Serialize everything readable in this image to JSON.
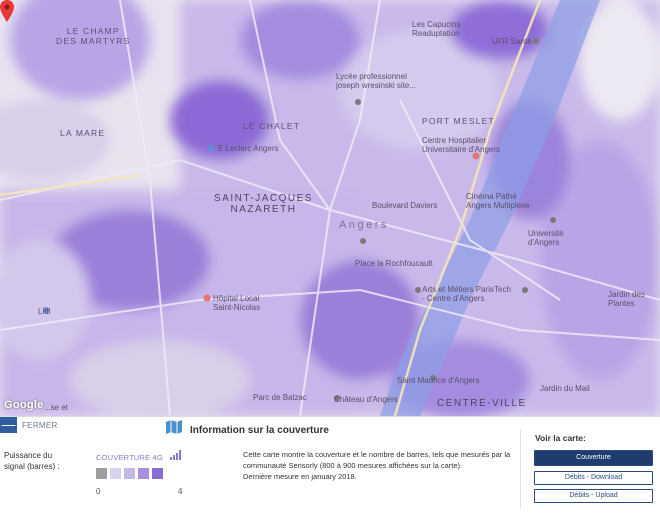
{
  "map": {
    "districts": {
      "champ_des_martyrs": "LE CHAMP\nDES MARTYRS",
      "la_mare": "LA MARE",
      "le_chalet": "LE CHALET",
      "saint_jacques": "SAINT-JACQUES\nNAZARETH",
      "port_meslet": "PORT MESLET",
      "centre_ville": "CENTRE-VILLE"
    },
    "city": "Angers",
    "pois": {
      "capucins": "Les Capucins\nReaduptation",
      "ufr_sante": "UFR Santé",
      "lycee": "Lycée professionnel\njoseph wresinski site...",
      "centre_hospitalier": "Centre Hospitalier\nUniversitaire d'Angers",
      "leclerc": "E.Leclerc Angers",
      "cinema": "Cinéma Pathé\nAngers Multiplexe",
      "universite": "Université\nd'Angers",
      "boulevard_daviers": "Boulevard Daviers",
      "place_rochefoucault": "Place la Rochfoucault",
      "arts_metiers": "Arts et Métiers ParisTech\n- Centre d'Angers",
      "hopital_local": "Hôpital Local\nSaint-Nicolas",
      "jardin_plantes": "Jardin des\nPlantes",
      "saint_maurice": "Saint Maurice d'Angers",
      "jardin_mail": "Jardin du Mail",
      "chateau": "Château d'Angers",
      "parc_balzac": "Parc de Balzac",
      "lidl": "Lidl",
      "eglise": "...se et"
    },
    "google_logo": "Google",
    "accent": "#7a5bd0",
    "pin_color": "#e53935"
  },
  "panel": {
    "close_label": "FERMER",
    "close_symbol": "—",
    "signal_label": "Puissance du\nsignal (barres) :",
    "coverage_title": "COUVERTURE 4G",
    "swatch_colors": [
      "#9e9e9e",
      "#d9d2ec",
      "#c5b8e6",
      "#a98fdf",
      "#8b6bd6"
    ],
    "scale_min": "0",
    "scale_max": "4",
    "info_title": "Information sur la couverture",
    "info_text": "Cette carte montre la couverture et le nombre de barres, tels que mesurés par la communauté Sensorly (800 à 900 mesures affichées sur la carte).\nDernière mesure en january 2018.",
    "view_title": "Voir la carte:",
    "buttons": [
      "Couverture",
      "Débits - Download",
      "Débits - Upload"
    ]
  }
}
